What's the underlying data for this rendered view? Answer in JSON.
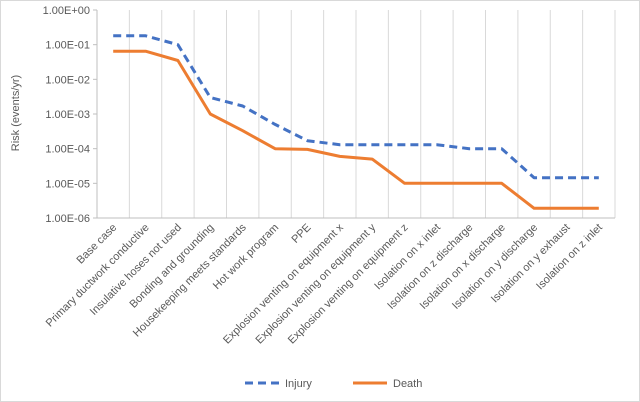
{
  "chart_data": {
    "type": "line",
    "title": "",
    "xlabel": "",
    "ylabel": "Risk (events/yr)",
    "y_scale": "log",
    "ylim": [
      1e-06,
      1
    ],
    "y_ticks": [
      "1.00E+00",
      "1.00E-01",
      "1.00E-02",
      "1.00E-03",
      "1.00E-04",
      "1.00E-05",
      "1.00E-06"
    ],
    "grid": "vertical",
    "legend_position": "bottom",
    "categories": [
      "Base case",
      "Primary ductwork conductive",
      "Insulative hoses not used",
      "Bonding and grounding",
      "Housekeeping meets standards",
      "Hot work program",
      "PPE",
      "Explosion venting on equipment x",
      "Explosion venting on equipment y",
      "Explosion venting on equipment z",
      "Isolation on x inlet",
      "Isolation on z discharge",
      "Isolation on x discharge",
      "Isolation on y discharge",
      "Isolation on y exhaust",
      "Isolation on z inlet"
    ],
    "series": [
      {
        "name": "Injury",
        "color": "#4472C4",
        "dash": "dashed",
        "values": [
          0.18,
          0.18,
          0.1,
          0.003,
          0.0017,
          0.0005,
          0.00017,
          0.00013,
          0.00013,
          0.00013,
          0.00013,
          0.0001,
          0.0001,
          1.45e-05,
          1.45e-05,
          1.45e-05
        ]
      },
      {
        "name": "Death",
        "color": "#ED7D31",
        "dash": "solid",
        "values": [
          0.065,
          0.065,
          0.035,
          0.001,
          0.00033,
          0.0001,
          9.5e-05,
          6e-05,
          5e-05,
          1e-05,
          1e-05,
          1e-05,
          1e-05,
          1.9e-06,
          1.9e-06,
          1.9e-06
        ]
      }
    ]
  }
}
